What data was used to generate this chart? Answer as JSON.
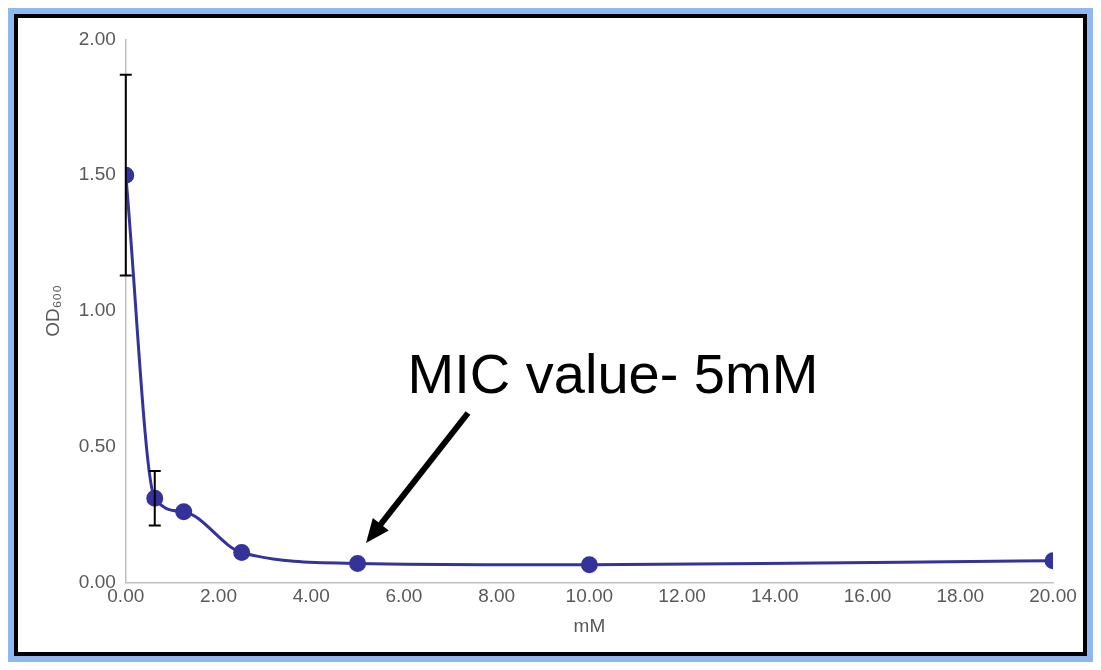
{
  "chart_data": {
    "type": "line",
    "xlabel": "mM",
    "ylabel": "OD₆₀₀",
    "x": [
      0,
      0.625,
      1.25,
      2.5,
      5,
      10,
      20
    ],
    "series": [
      {
        "color": "#333399",
        "values": [
          1.5,
          0.31,
          0.26,
          0.11,
          0.07,
          0.065,
          0.08
        ],
        "errors": [
          0.37,
          0.1,
          null,
          null,
          null,
          null,
          null
        ]
      }
    ],
    "xlim": [
      0,
      20
    ],
    "xticks": [
      {
        "value": 0,
        "label": "0.00"
      },
      {
        "value": 2,
        "label": "2.00"
      },
      {
        "value": 4,
        "label": "4.00"
      },
      {
        "value": 6,
        "label": "6.00"
      },
      {
        "value": 8,
        "label": "8.00"
      },
      {
        "value": 10,
        "label": "10.00"
      },
      {
        "value": 12,
        "label": "12.00"
      },
      {
        "value": 14,
        "label": "14.00"
      },
      {
        "value": 16,
        "label": "16.00"
      },
      {
        "value": 18,
        "label": "18.00"
      },
      {
        "value": 20,
        "label": "20.00"
      }
    ],
    "ylim": [
      0,
      2
    ],
    "yticks": [
      {
        "value": 0,
        "label": "0.00"
      },
      {
        "value": 0.5,
        "label": "0.50"
      },
      {
        "value": 1,
        "label": "1.00"
      },
      {
        "value": 1.5,
        "label": "1.50"
      },
      {
        "value": 2,
        "label": "2.00"
      }
    ],
    "grid": false,
    "legend": false,
    "marker": "circle",
    "line_style": "solid",
    "annotations": [
      {
        "text": "MIC value- 5mM",
        "x": 5,
        "y": 0.07
      }
    ]
  }
}
